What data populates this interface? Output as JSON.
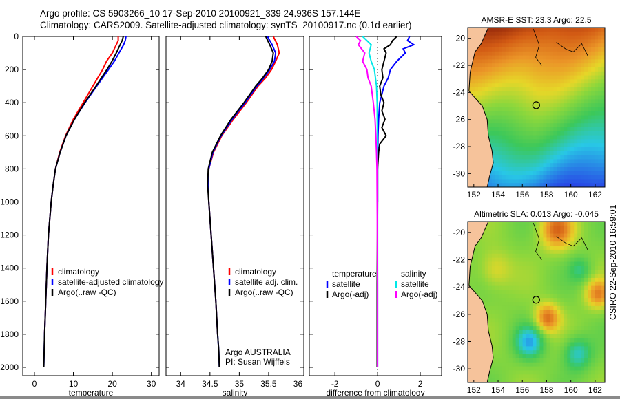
{
  "header": {
    "line1": "Argo profile: CS 5903266_10 17-Sep-2010 20100921_339 24.936S 157.144E",
    "line2": "Climatology: CARS2009. Satellite-adjusted climatology: synTS_20100917.nc (0.1d earlier)"
  },
  "stamp": "CSIRO 22-Sep-2010 16:59:01",
  "colors": {
    "climatology": "#ff0000",
    "satellite": "#0000ff",
    "argo": "#000000",
    "sal_satellite": "#00e8e8",
    "sal_argo": "#ff00ff"
  },
  "chart_data": [
    {
      "type": "line",
      "name": "temperature",
      "xlabel": "temperature",
      "ylabel": "",
      "xlim": [
        -3,
        32
      ],
      "ylim": [
        2050,
        0
      ],
      "xticks": [
        0,
        10,
        20,
        30
      ],
      "yticks": [
        0,
        200,
        400,
        600,
        800,
        1000,
        1200,
        1400,
        1600,
        1800,
        2000
      ],
      "legend": [
        "climatology",
        "satellite-adjusted climatology",
        "Argo(..raw -QC)"
      ],
      "series": [
        {
          "name": "climatology",
          "color": "#ff0000",
          "depth": [
            0,
            25,
            50,
            75,
            100,
            150,
            200,
            300,
            400,
            500,
            600,
            700,
            800,
            900,
            1000,
            1200,
            1400,
            1600,
            1800
          ],
          "values": [
            21.5,
            21.5,
            21.0,
            20.5,
            20.0,
            18.5,
            17.5,
            15.0,
            12.5,
            10.0,
            8.0,
            6.5,
            5.4,
            4.8,
            4.3,
            3.6,
            3.2,
            2.9,
            2.6
          ]
        },
        {
          "name": "satellite-adjusted climatology",
          "color": "#0000ff",
          "depth": [
            0,
            25,
            50,
            75,
            100,
            150,
            200,
            300,
            400,
            500,
            600,
            700,
            800,
            900,
            1000,
            1200,
            1400,
            1600,
            1800,
            1900,
            2000
          ],
          "values": [
            23.5,
            23.3,
            22.9,
            22.3,
            21.7,
            20.5,
            19.0,
            16.0,
            13.0,
            10.3,
            8.1,
            6.6,
            5.4,
            4.8,
            4.3,
            3.6,
            3.2,
            2.9,
            2.6,
            2.5,
            2.4
          ]
        },
        {
          "name": "Argo(..raw -QC)",
          "color": "#000000",
          "depth": [
            0,
            25,
            50,
            75,
            100,
            150,
            200,
            300,
            400,
            500,
            600,
            700,
            800,
            900,
            1000,
            1200,
            1400,
            1600,
            1800,
            1900,
            2000
          ],
          "values": [
            22.8,
            22.5,
            22.0,
            21.5,
            21.0,
            19.9,
            18.6,
            15.8,
            12.9,
            10.3,
            8.1,
            6.6,
            5.4,
            4.8,
            4.3,
            3.6,
            3.2,
            2.9,
            2.6,
            2.5,
            2.4
          ]
        }
      ]
    },
    {
      "type": "line",
      "name": "salinity",
      "xlabel": "salinity",
      "ylabel": "",
      "xlim": [
        33.75,
        36.1
      ],
      "ylim": [
        2050,
        0
      ],
      "xticks": [
        34,
        34.5,
        35,
        35.5,
        36
      ],
      "legend": [
        "climatology",
        "satellite adj. clim.",
        "Argo(..raw -QC)"
      ],
      "annotation": [
        "Argo AUSTRALIA",
        "PI: Susan Wijffels"
      ],
      "series": [
        {
          "name": "climatology",
          "color": "#ff0000",
          "depth": [
            0,
            50,
            100,
            150,
            200,
            250,
            300,
            400,
            500,
            600,
            700,
            800,
            900,
            1000,
            1200,
            1400,
            1600,
            1800
          ],
          "values": [
            35.58,
            35.65,
            35.68,
            35.62,
            35.55,
            35.45,
            35.32,
            35.12,
            34.9,
            34.7,
            34.56,
            34.48,
            34.47,
            34.48,
            34.52,
            34.56,
            34.6,
            34.63
          ]
        },
        {
          "name": "satellite adj. clim.",
          "color": "#0000ff",
          "depth": [
            0,
            50,
            100,
            150,
            200,
            250,
            300,
            400,
            500,
            600,
            700,
            800,
            900,
            1000,
            1200,
            1400,
            1600,
            1800,
            1900,
            2000
          ],
          "values": [
            35.48,
            35.56,
            35.62,
            35.6,
            35.52,
            35.42,
            35.3,
            35.1,
            34.88,
            34.69,
            34.55,
            34.48,
            34.47,
            34.48,
            34.52,
            34.56,
            34.6,
            34.63,
            34.65,
            34.66
          ]
        },
        {
          "name": "Argo(..raw -QC)",
          "color": "#000000",
          "depth": [
            0,
            50,
            100,
            150,
            200,
            250,
            300,
            400,
            500,
            600,
            700,
            800,
            900,
            1000,
            1200,
            1400,
            1600,
            1800,
            1900,
            2000
          ],
          "values": [
            35.45,
            35.52,
            35.58,
            35.56,
            35.5,
            35.4,
            35.28,
            35.08,
            34.86,
            34.68,
            34.54,
            34.47,
            34.46,
            34.48,
            34.52,
            34.56,
            34.6,
            34.63,
            34.65,
            34.66
          ]
        }
      ]
    },
    {
      "type": "line",
      "name": "difference from climatology",
      "xlabel": "difference from climatology",
      "ylabel": "",
      "xlim": [
        -3.2,
        3.0
      ],
      "ylim": [
        2050,
        0
      ],
      "xticks": [
        -2,
        0,
        2
      ],
      "legend_temperature": [
        "temperature",
        "satellite",
        "Argo(-adj)"
      ],
      "legend_salinity": [
        "salinity",
        "satellite",
        "Argo(-adj)"
      ],
      "series": [
        {
          "name": "temperature satellite",
          "color": "#0000ff",
          "depth": [
            0,
            25,
            50,
            75,
            100,
            150,
            200,
            250,
            300,
            350,
            400,
            500,
            600,
            800,
            1000
          ],
          "values": [
            1.5,
            1.4,
            1.7,
            1.2,
            1.3,
            0.9,
            0.6,
            0.5,
            0.3,
            0.2,
            0.1,
            0.05,
            0.02,
            0.0,
            0.0
          ]
        },
        {
          "name": "temperature Argo(-adj)",
          "color": "#000000",
          "depth": [
            0,
            25,
            50,
            75,
            100,
            150,
            200,
            250,
            300,
            350,
            400,
            450,
            500,
            550,
            600,
            650,
            700,
            800,
            1000,
            1500,
            2000
          ],
          "values": [
            0.9,
            0.7,
            0.6,
            0.3,
            0.4,
            0.3,
            0.2,
            0.25,
            0.1,
            0.15,
            0.3,
            0.2,
            0.35,
            0.2,
            0.4,
            0.1,
            0.05,
            0.0,
            0.0,
            -0.02,
            -0.02
          ]
        },
        {
          "name": "salinity satellite",
          "color": "#00e8e8",
          "depth": [
            0,
            25,
            50,
            100,
            150,
            200,
            300,
            400,
            600,
            800,
            1000,
            1500,
            2000
          ],
          "values": [
            -0.7,
            -0.5,
            -0.3,
            -0.4,
            -0.3,
            -0.15,
            -0.05,
            -0.02,
            -0.01,
            0.0,
            0.0,
            0.0,
            0.0
          ]
        },
        {
          "name": "salinity Argo(-adj)",
          "color": "#ff00ff",
          "depth": [
            0,
            25,
            50,
            100,
            150,
            200,
            250,
            300,
            400,
            500,
            600,
            700,
            800,
            1000,
            1200,
            1500,
            1800,
            2000
          ],
          "values": [
            -1.0,
            -0.8,
            -0.9,
            -0.6,
            -0.7,
            -0.5,
            -0.45,
            -0.3,
            -0.2,
            -0.12,
            -0.08,
            -0.05,
            -0.03,
            -0.02,
            -0.01,
            0.0,
            0.0,
            0.0
          ]
        }
      ]
    },
    {
      "type": "heatmap",
      "name": "sst-map",
      "title": "AMSR-E SST: 23.3 Argo: 22.5",
      "xlim": [
        151.5,
        162.8
      ],
      "ylim": [
        -31,
        -19.2
      ],
      "xticks": [
        152,
        154,
        156,
        158,
        160,
        162
      ],
      "yticks": [
        -20,
        -22,
        -24,
        -26,
        -28,
        -30
      ],
      "marker": {
        "lon": 157.14,
        "lat": -24.94
      },
      "coast": [
        [
          153.2,
          -19.2
        ],
        [
          152.6,
          -20.4
        ],
        [
          152.1,
          -21.0
        ],
        [
          151.7,
          -22.5
        ],
        [
          151.6,
          -23.9
        ],
        [
          152.0,
          -24.3
        ],
        [
          152.7,
          -25.0
        ],
        [
          153.1,
          -26.0
        ],
        [
          153.2,
          -27.2
        ],
        [
          153.5,
          -28.3
        ],
        [
          153.6,
          -29.2
        ],
        [
          153.3,
          -30.2
        ],
        [
          153.1,
          -31.0
        ]
      ]
    },
    {
      "type": "heatmap",
      "name": "sla-map",
      "title": "Altimetric SLA: 0.013 Argo: -0.045",
      "xlim": [
        151.5,
        162.8
      ],
      "ylim": [
        -31,
        -19.2
      ],
      "xticks": [
        152,
        154,
        156,
        158,
        160,
        162
      ],
      "yticks": [
        -20,
        -22,
        -24,
        -26,
        -28,
        -30
      ],
      "marker": {
        "lon": 157.14,
        "lat": -24.94
      }
    }
  ]
}
